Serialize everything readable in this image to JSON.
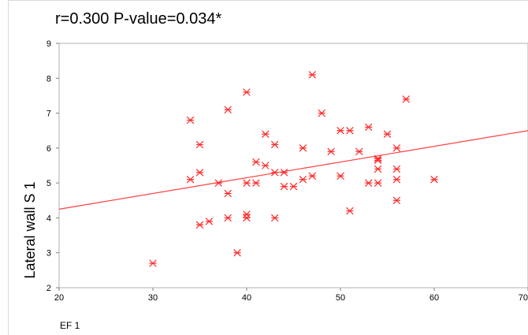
{
  "chart_data": {
    "type": "scatter",
    "title": "r=0.300   P-value=0.034*",
    "xlabel": "EF 1",
    "ylabel": "Lateral wall  S 1",
    "xlim": [
      20,
      70
    ],
    "ylim": [
      2,
      9
    ],
    "x_ticks": [
      "20",
      "30",
      "40",
      "50",
      "60",
      "70"
    ],
    "y_ticks": [
      "2",
      "3",
      "4",
      "5",
      "6",
      "7",
      "8",
      "9"
    ],
    "grid": false,
    "marker": "asterisk",
    "marker_color": "#ff2a2a",
    "fit_line": {
      "type": "linear",
      "color": "#ff4040",
      "x": [
        20,
        70
      ],
      "y": [
        4.25,
        6.5
      ]
    },
    "series": [
      {
        "points": [
          [
            30,
            2.7
          ],
          [
            34,
            6.8
          ],
          [
            34,
            5.1
          ],
          [
            35,
            6.1
          ],
          [
            35,
            5.3
          ],
          [
            35,
            3.8
          ],
          [
            36,
            3.9
          ],
          [
            37,
            5.0
          ],
          [
            38,
            7.1
          ],
          [
            38,
            4.7
          ],
          [
            38,
            4.0
          ],
          [
            39,
            3.0
          ],
          [
            40,
            7.6
          ],
          [
            40,
            5.0
          ],
          [
            40,
            4.1
          ],
          [
            40,
            4.0
          ],
          [
            41,
            5.6
          ],
          [
            41,
            5.0
          ],
          [
            42,
            6.4
          ],
          [
            42,
            5.5
          ],
          [
            43,
            6.1
          ],
          [
            43,
            5.3
          ],
          [
            43,
            4.0
          ],
          [
            44,
            5.3
          ],
          [
            44,
            4.9
          ],
          [
            45,
            4.9
          ],
          [
            46,
            6.0
          ],
          [
            46,
            5.1
          ],
          [
            47,
            8.1
          ],
          [
            47,
            5.2
          ],
          [
            48,
            7.0
          ],
          [
            49,
            5.9
          ],
          [
            50,
            6.5
          ],
          [
            50,
            5.2
          ],
          [
            51,
            6.5
          ],
          [
            51,
            4.2
          ],
          [
            52,
            5.9
          ],
          [
            53,
            6.6
          ],
          [
            53,
            5.0
          ],
          [
            54,
            5.7
          ],
          [
            54,
            5.65
          ],
          [
            54,
            5.4
          ],
          [
            54,
            5.0
          ],
          [
            55,
            6.4
          ],
          [
            56,
            6.0
          ],
          [
            56,
            5.4
          ],
          [
            56,
            5.1
          ],
          [
            56,
            4.5
          ],
          [
            57,
            7.4
          ],
          [
            60,
            5.1
          ]
        ]
      }
    ]
  }
}
